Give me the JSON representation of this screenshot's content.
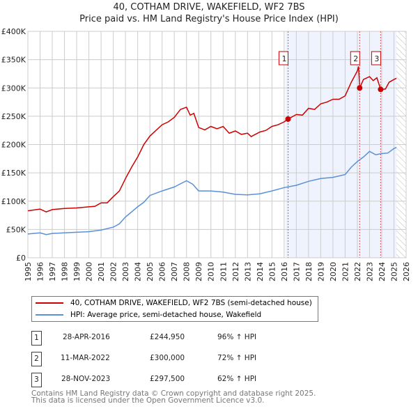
{
  "title_line1": "40, COTHAM DRIVE, WAKEFIELD, WF2 7BS",
  "title_line2": "Price paid vs. HM Land Registry's House Price Index (HPI)",
  "colors": {
    "property": "#cc0000",
    "hpi": "#5b8fd6",
    "shade": "#eef3fd",
    "grid": "#cccccc"
  },
  "chart_data": {
    "type": "line",
    "title": "Price paid vs. HM Land Registry's House Price Index (HPI)",
    "xlim": [
      1995,
      2026
    ],
    "ylim": [
      0,
      400000
    ],
    "x_ticks": [
      1995,
      1996,
      1997,
      1998,
      1999,
      2000,
      2001,
      2002,
      2003,
      2004,
      2005,
      2006,
      2007,
      2008,
      2009,
      2010,
      2011,
      2012,
      2013,
      2014,
      2015,
      2016,
      2017,
      2018,
      2019,
      2020,
      2021,
      2022,
      2023,
      2024,
      2025,
      2026
    ],
    "y_ticks": [
      0,
      50000,
      100000,
      150000,
      200000,
      250000,
      300000,
      350000,
      400000
    ],
    "y_tick_labels": [
      "£0",
      "£50K",
      "£100K",
      "£150K",
      "£200K",
      "£250K",
      "£300K",
      "£350K",
      "£400K"
    ],
    "grid": true,
    "shaded_range": [
      2016.1,
      2025.2
    ],
    "hatched_range": [
      2025.2,
      2026
    ],
    "series": [
      {
        "name": "40, COTHAM DRIVE, WAKEFIELD, WF2 7BS (semi-detached house)",
        "color": "#cc0000",
        "x": [
          1995,
          1996,
          1996.5,
          1997,
          1998,
          1999,
          2000,
          2000.5,
          2001,
          2001.5,
          2002,
          2002.5,
          2003,
          2003.5,
          2004,
          2004.5,
          2005,
          2005.5,
          2006,
          2006.5,
          2007,
          2007.5,
          2008,
          2008.3,
          2008.6,
          2009,
          2009.5,
          2010,
          2010.5,
          2011,
          2011.5,
          2012,
          2012.5,
          2013,
          2013.3,
          2014,
          2014.5,
          2015,
          2015.5,
          2016,
          2016.32,
          2017,
          2017.5,
          2018,
          2018.5,
          2019,
          2019.5,
          2020,
          2020.5,
          2021,
          2021.5,
          2022,
          2022.1,
          2022.19,
          2022.5,
          2023,
          2023.3,
          2023.6,
          2023.91,
          2024.3,
          2024.6,
          2025,
          2025.2
        ],
        "y": [
          83000,
          86000,
          81000,
          85000,
          87000,
          88000,
          90000,
          91000,
          97000,
          97000,
          108000,
          118000,
          140000,
          160000,
          178000,
          200000,
          215000,
          225000,
          235000,
          240000,
          248000,
          262000,
          266000,
          252000,
          255000,
          230000,
          226000,
          232000,
          228000,
          232000,
          220000,
          224000,
          218000,
          220000,
          214000,
          222000,
          225000,
          232000,
          235000,
          240000,
          244950,
          253000,
          252000,
          264000,
          262000,
          272000,
          275000,
          280000,
          280000,
          286000,
          310000,
          330000,
          338000,
          300000,
          315000,
          320000,
          313000,
          318000,
          297500,
          298000,
          310000,
          315000,
          317000
        ]
      },
      {
        "name": "HPI: Average price, semi-detached house, Wakefield",
        "color": "#5b8fd6",
        "x": [
          1995,
          1996,
          1996.5,
          1997,
          1998,
          1999,
          2000,
          2001,
          2002,
          2002.5,
          2003,
          2004,
          2004.5,
          2005,
          2006,
          2007,
          2008,
          2008.5,
          2009,
          2010,
          2011,
          2012,
          2013,
          2014,
          2015,
          2016,
          2017,
          2018,
          2019,
          2020,
          2021,
          2021.5,
          2022,
          2022.5,
          2023,
          2023.5,
          2024,
          2024.5,
          2025,
          2025.2
        ],
        "y": [
          42000,
          44000,
          41000,
          43000,
          44000,
          45000,
          46000,
          49000,
          54000,
          60000,
          72000,
          90000,
          98000,
          110000,
          118000,
          125000,
          136000,
          130000,
          118000,
          118000,
          116000,
          112000,
          111000,
          113000,
          118000,
          124000,
          128000,
          135000,
          140000,
          142000,
          147000,
          160000,
          170000,
          178000,
          188000,
          182000,
          184000,
          185000,
          193000,
          195000
        ]
      }
    ],
    "sales": [
      {
        "label": "1",
        "x": 2016.32,
        "y": 244950
      },
      {
        "label": "2",
        "x": 2022.19,
        "y": 300000
      },
      {
        "label": "3",
        "x": 2023.91,
        "y": 297500
      }
    ]
  },
  "legend": {
    "property": "40, COTHAM DRIVE, WAKEFIELD, WF2 7BS (semi-detached house)",
    "hpi": "HPI: Average price, semi-detached house, Wakefield"
  },
  "transactions": [
    {
      "num": "1",
      "date": "28-APR-2016",
      "price": "£244,950",
      "hpi": "96% ↑ HPI"
    },
    {
      "num": "2",
      "date": "11-MAR-2022",
      "price": "£300,000",
      "hpi": "72% ↑ HPI"
    },
    {
      "num": "3",
      "date": "28-NOV-2023",
      "price": "£297,500",
      "hpi": "62% ↑ HPI"
    }
  ],
  "footer_line1": "Contains HM Land Registry data © Crown copyright and database right 2025.",
  "footer_line2": "This data is licensed under the Open Government Licence v3.0."
}
